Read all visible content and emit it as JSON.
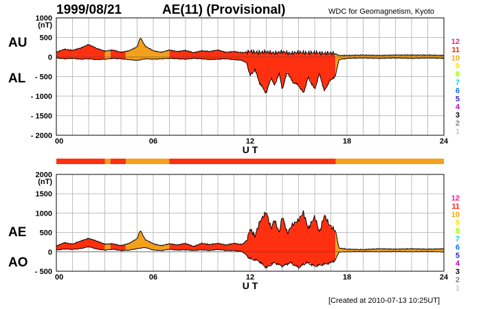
{
  "header": {
    "date": "1999/08/21",
    "title": "AE(11) (Provisional)",
    "source": "WDC for Geomagnetism, Kyoto"
  },
  "footer": "[Created at 2010-07-13 10:25UT]",
  "colors": {
    "red": "#ff3010",
    "orange": "#f5a01c",
    "grid": "#bdbdbd",
    "line": "#000000"
  },
  "level_scale": [
    {
      "label": "12",
      "color": "#ff1a8c"
    },
    {
      "label": "11",
      "color": "#ff2010"
    },
    {
      "label": "10",
      "color": "#ffa500"
    },
    {
      "label": "9",
      "color": "#ffe000"
    },
    {
      "label": "8",
      "color": "#a0ff00"
    },
    {
      "label": "7",
      "color": "#00d0e0"
    },
    {
      "label": "6",
      "color": "#0070ff"
    },
    {
      "label": "5",
      "color": "#3020c0"
    },
    {
      "label": "4",
      "color": "#c000c0"
    },
    {
      "label": "3",
      "color": "#000000"
    },
    {
      "label": "2",
      "color": "#808080"
    },
    {
      "label": "1",
      "color": "#c8c8c8"
    }
  ],
  "chart_data": [
    {
      "type": "area",
      "panel": "AU/AL",
      "labels": [
        "AU",
        "AL"
      ],
      "xlabel": "U T",
      "xlim": [
        0,
        24
      ],
      "xticks": [
        "00",
        "06",
        "12",
        "18",
        "24"
      ],
      "ylim": [
        -2000,
        1000
      ],
      "yticks": [
        "1000",
        "500",
        "0",
        "- 500",
        "- 1000",
        "- 1500",
        "- 2000"
      ],
      "yunit": "(nT)",
      "grid": true,
      "segments": [
        {
          "from": 0,
          "to": 3.0,
          "level": "red"
        },
        {
          "from": 3.0,
          "to": 3.35,
          "level": "orange"
        },
        {
          "from": 3.35,
          "to": 4.3,
          "level": "red"
        },
        {
          "from": 4.3,
          "to": 7.0,
          "level": "orange"
        },
        {
          "from": 7.0,
          "to": 17.3,
          "level": "red"
        },
        {
          "from": 17.3,
          "to": 24,
          "level": "orange"
        }
      ],
      "series": [
        {
          "name": "AU",
          "x": [
            0,
            0.5,
            1,
            1.5,
            2,
            2.5,
            3,
            3.5,
            4,
            4.5,
            5,
            5.2,
            5.5,
            6,
            6.5,
            7,
            7.5,
            8,
            8.5,
            9,
            9.5,
            10,
            10.5,
            11,
            11.5,
            12,
            12.5,
            13,
            13.5,
            14,
            14.5,
            15,
            15.5,
            16,
            16.5,
            17,
            17.3,
            17.5,
            18,
            19,
            20,
            21,
            22,
            23,
            24
          ],
          "values": [
            120,
            200,
            170,
            230,
            320,
            220,
            150,
            180,
            120,
            160,
            260,
            500,
            280,
            160,
            120,
            180,
            140,
            170,
            110,
            160,
            140,
            180,
            120,
            140,
            110,
            140,
            110,
            130,
            100,
            130,
            90,
            120,
            100,
            110,
            90,
            100,
            80,
            40,
            40,
            50,
            40,
            50,
            50,
            50,
            40
          ]
        },
        {
          "name": "AL",
          "x": [
            0,
            0.5,
            1,
            1.5,
            2,
            2.5,
            3,
            3.5,
            4,
            4.5,
            5,
            5.5,
            6,
            6.5,
            7,
            7.5,
            8,
            8.5,
            9,
            9.5,
            10,
            10.5,
            11,
            11.5,
            11.8,
            12,
            12.3,
            12.6,
            13,
            13.3,
            13.5,
            13.8,
            14,
            14.3,
            14.6,
            15,
            15.3,
            15.6,
            16,
            16.3,
            16.6,
            16.9,
            17.3,
            17.5,
            18,
            19,
            20,
            21,
            22,
            23,
            24
          ],
          "values": [
            -20,
            -40,
            -30,
            -50,
            -40,
            -60,
            -50,
            -30,
            -40,
            -60,
            -80,
            -40,
            -50,
            -40,
            -30,
            -40,
            -50,
            -30,
            -40,
            -60,
            -50,
            -40,
            -60,
            -80,
            -150,
            -450,
            -300,
            -650,
            -900,
            -500,
            -700,
            -400,
            -800,
            -350,
            -600,
            -700,
            -900,
            -500,
            -800,
            -400,
            -850,
            -600,
            -450,
            -60,
            -30,
            -20,
            -30,
            -20,
            -30,
            -20,
            -30
          ]
        }
      ]
    },
    {
      "type": "area",
      "panel": "AE/AO",
      "labels": [
        "AE",
        "AO"
      ],
      "xlabel": "U T",
      "xlim": [
        0,
        24
      ],
      "xticks": [
        "00",
        "06",
        "12",
        "18",
        "24"
      ],
      "ylim": [
        -500,
        2000
      ],
      "yticks": [
        "2000",
        "1500",
        "1000",
        "500",
        "0",
        "- 500"
      ],
      "yunit": "(nT)",
      "grid": true,
      "segments": [
        {
          "from": 0,
          "to": 3.0,
          "level": "red"
        },
        {
          "from": 3.0,
          "to": 3.35,
          "level": "orange"
        },
        {
          "from": 3.35,
          "to": 4.3,
          "level": "red"
        },
        {
          "from": 4.3,
          "to": 7.0,
          "level": "orange"
        },
        {
          "from": 7.0,
          "to": 17.3,
          "level": "red"
        },
        {
          "from": 17.3,
          "to": 24,
          "level": "orange"
        }
      ],
      "series": [
        {
          "name": "AE",
          "x": [
            0,
            0.5,
            1,
            1.5,
            2,
            2.5,
            3,
            3.5,
            4,
            4.5,
            5,
            5.2,
            5.5,
            6,
            6.5,
            7,
            7.5,
            8,
            8.5,
            9,
            9.5,
            10,
            10.5,
            11,
            11.5,
            11.8,
            12,
            12.3,
            12.6,
            13,
            13.3,
            13.5,
            13.8,
            14,
            14.3,
            14.6,
            15,
            15.3,
            15.6,
            16,
            16.3,
            16.6,
            16.9,
            17.3,
            17.5,
            18,
            19,
            20,
            21,
            22,
            23,
            24
          ],
          "values": [
            150,
            240,
            200,
            280,
            350,
            280,
            200,
            210,
            160,
            220,
            340,
            560,
            320,
            210,
            160,
            210,
            180,
            220,
            140,
            220,
            190,
            220,
            180,
            220,
            190,
            300,
            590,
            410,
            780,
            1030,
            600,
            830,
            500,
            930,
            480,
            690,
            820,
            1020,
            600,
            910,
            500,
            950,
            700,
            530,
            100,
            70,
            60,
            80,
            70,
            80,
            70,
            80
          ]
        },
        {
          "name": "AO",
          "x": [
            0,
            0.5,
            1,
            1.5,
            2,
            2.5,
            3,
            3.5,
            4,
            4.5,
            5,
            5.5,
            6,
            6.5,
            7,
            7.5,
            8,
            8.5,
            9,
            9.5,
            10,
            10.5,
            11,
            11.5,
            12,
            12.5,
            13,
            13.5,
            14,
            14.5,
            15,
            15.5,
            16,
            16.5,
            17,
            17.3,
            17.5,
            18,
            19,
            20,
            21,
            22,
            23,
            24
          ],
          "values": [
            50,
            80,
            70,
            90,
            140,
            80,
            50,
            75,
            40,
            50,
            90,
            120,
            55,
            40,
            75,
            50,
            60,
            40,
            60,
            40,
            70,
            40,
            40,
            15,
            -150,
            -200,
            -380,
            -250,
            -340,
            -250,
            -380,
            -250,
            -340,
            -300,
            -250,
            -180,
            0,
            10,
            15,
            10,
            15,
            10,
            15,
            5
          ]
        }
      ]
    }
  ]
}
